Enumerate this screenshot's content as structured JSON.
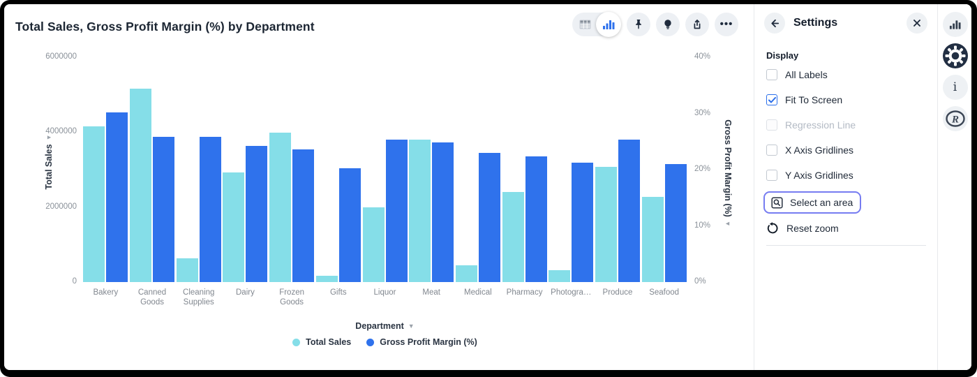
{
  "chart": {
    "title": "Total Sales, Gross Profit Margin (%) by Department",
    "toolbar": {
      "view_toggle": [
        "table-view",
        "chart-view"
      ],
      "active_view": "chart-view",
      "buttons": [
        "pin",
        "insights-bulb",
        "share",
        "more"
      ]
    }
  },
  "chart_data": {
    "type": "bar",
    "title": "Total Sales, Gross Profit Margin (%) by Department",
    "xlabel": "Department",
    "grid": false,
    "legend_position": "bottom",
    "categories": [
      "Bakery",
      "Canned Goods",
      "Cleaning Supplies",
      "Dairy",
      "Frozen Goods",
      "Gifts",
      "Liquor",
      "Meat",
      "Medical",
      "Pharmacy",
      "Photogra…",
      "Produce",
      "Seafood"
    ],
    "category_label_lines": [
      [
        "Bakery"
      ],
      [
        "Canned",
        "Goods"
      ],
      [
        "Cleaning",
        "Supplies"
      ],
      [
        "Dairy"
      ],
      [
        "Frozen",
        "Goods"
      ],
      [
        "Gifts"
      ],
      [
        "Liquor"
      ],
      [
        "Meat"
      ],
      [
        "Medical"
      ],
      [
        "Pharmacy"
      ],
      [
        "Photogra…"
      ],
      [
        "Produce"
      ],
      [
        "Seafood"
      ]
    ],
    "series": [
      {
        "name": "Total Sales",
        "axis": "left",
        "color": "#85dee8",
        "values": [
          4150000,
          5160000,
          630000,
          2920000,
          3980000,
          170000,
          1990000,
          3800000,
          440000,
          2410000,
          320000,
          3080000,
          2270000
        ]
      },
      {
        "name": "Gross Profit Margin (%)",
        "axis": "right",
        "color": "#2f72ec",
        "values": [
          30.2,
          25.9,
          25.8,
          24.2,
          23.6,
          20.2,
          25.4,
          24.8,
          23.0,
          22.3,
          21.2,
          25.3,
          21.0
        ]
      }
    ],
    "left_axis": {
      "title": "Total Sales",
      "max": 6000000,
      "tick_values": [
        0,
        2000000,
        4000000,
        6000000
      ],
      "tick_labels": [
        "0",
        "2000000",
        "4000000",
        "6000000"
      ]
    },
    "right_axis": {
      "title": "Gross Profit Margin (%)",
      "max": 40,
      "tick_values": [
        0,
        10,
        20,
        30,
        40
      ],
      "tick_labels": [
        "0%",
        "10%",
        "20%",
        "30%",
        "40%"
      ]
    }
  },
  "settings": {
    "title": "Settings",
    "section_label": "Display",
    "checkboxes": [
      {
        "label": "All Labels",
        "checked": false,
        "disabled": false
      },
      {
        "label": "Fit To Screen",
        "checked": true,
        "disabled": false
      },
      {
        "label": "Regression Line",
        "checked": false,
        "disabled": true
      },
      {
        "label": "X Axis Gridlines",
        "checked": false,
        "disabled": false
      },
      {
        "label": "Y Axis Gridlines",
        "checked": false,
        "disabled": false
      }
    ],
    "select_area_label": "Select an area",
    "reset_zoom_label": "Reset zoom"
  },
  "side_strip": {
    "icons": [
      "bar-chart",
      "gear",
      "info",
      "r-logo"
    ],
    "active_icon": "gear"
  },
  "colors": {
    "series_total_sales": "#85dee8",
    "series_gpm": "#2f72ec",
    "accent_focus_ring": "#767cf1",
    "checkbox_checked": "#2b6fea",
    "text_dark": "#1c2633",
    "text_gray": "#8a9199"
  }
}
